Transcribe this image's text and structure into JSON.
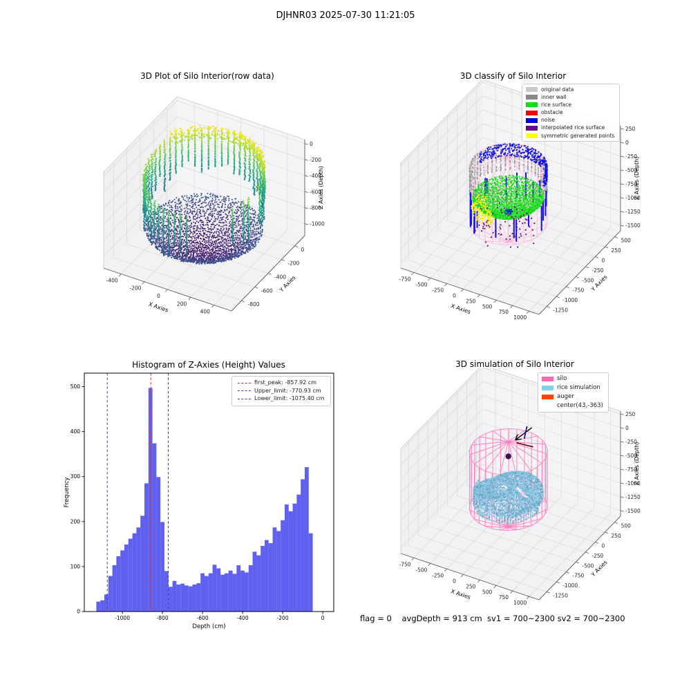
{
  "window_title": "DJHNR03 2025-07-30 11:21:05",
  "footer": "flag = 0    avgDepth = 913 cm  sv1 = 700~2300 sv2 = 700~2300",
  "chart_data": [
    {
      "id": "raw_scatter",
      "type": "scatter",
      "title": "3D Plot of Silo Interior(row data)",
      "xlabel": "X Axies",
      "ylabel": "Y Axies",
      "zlabel": "Z Axies (Depth)",
      "xticks": [
        -400,
        -200,
        0,
        200,
        400
      ],
      "yticks": [
        0,
        -200,
        -400,
        -600,
        -800
      ],
      "zticks": [
        0,
        -200,
        -400,
        -600,
        -800,
        -1000
      ],
      "xlim": [
        -550,
        550
      ],
      "ylim": [
        -950,
        150
      ],
      "zlim": [
        -1150,
        50
      ],
      "colormap": "viridis",
      "silo": {
        "center_x": 0,
        "center_y": -400,
        "radius": 450,
        "rim_top": -10,
        "wall_bottom": -700,
        "basin_edge": -860,
        "basin_center": -1080
      }
    },
    {
      "id": "classify",
      "type": "scatter",
      "title": "3D classify of Silo Interior",
      "xlabel": "X Axies",
      "ylabel": "Y Axies",
      "zlabel": "Z Axies (Depth)",
      "xticks": [
        -750,
        -500,
        -250,
        0,
        250,
        500,
        750,
        1000
      ],
      "yticks": [
        500,
        250,
        0,
        -250,
        -500,
        -750,
        -1000,
        -1250
      ],
      "zticks": [
        250,
        0,
        -250,
        -500,
        -750,
        -1000,
        -1250,
        -1500
      ],
      "xlim": [
        -950,
        1150
      ],
      "ylim": [
        -1450,
        650
      ],
      "zlim": [
        -1600,
        300
      ],
      "legend": [
        {
          "label": "original data",
          "color": "#c9c9c9"
        },
        {
          "label": "inner wall",
          "color": "#8a8a8a"
        },
        {
          "label": "rice surface",
          "color": "#00e400"
        },
        {
          "label": "obstacle",
          "color": "#ff0000"
        },
        {
          "label": "noise",
          "color": "#0000ee"
        },
        {
          "label": "interpolated rice surface",
          "color": "#6a0d83"
        },
        {
          "label": "symmetric generated points",
          "color": "#ffff00"
        }
      ],
      "silo": {
        "center_x": 43,
        "center_y": -363,
        "radius": 510,
        "cyl_top": -150,
        "cyl_bottom": -1150,
        "roof_apex": 40,
        "hopper_apex": -1520
      }
    },
    {
      "id": "histogram",
      "type": "bar",
      "title": "Histogram of Z-Axies (Height) Values",
      "xlabel": "Depth (cm)",
      "ylabel": "Frequency",
      "xticks": [
        -1000,
        -800,
        -600,
        -400,
        -200,
        0
      ],
      "yticks": [
        0,
        100,
        200,
        300,
        400,
        500
      ],
      "xlim": [
        -1190,
        55
      ],
      "ylim": [
        0,
        530
      ],
      "bin_start": -1130,
      "bin_width": 20,
      "values": [
        22,
        25,
        38,
        79,
        103,
        123,
        136,
        149,
        162,
        174,
        187,
        213,
        285,
        497,
        374,
        299,
        199,
        90,
        55,
        68,
        60,
        62,
        58,
        56,
        60,
        63,
        85,
        79,
        85,
        104,
        96,
        82,
        85,
        91,
        84,
        103,
        91,
        87,
        103,
        133,
        125,
        146,
        159,
        152,
        187,
        179,
        203,
        238,
        223,
        240,
        260,
        294,
        321,
        174
      ],
      "bar_color": "#4444ee",
      "markers": [
        {
          "label": "first_peak: -857.92 cm",
          "x": -857.92,
          "color": "#e03030"
        },
        {
          "label": "Upper_limit: -770.93 cm",
          "x": -770.93,
          "color": "#3434d8"
        },
        {
          "label": "Lower_limit: -1075.40 cm",
          "x": -1075.4,
          "color": "#3434d8"
        }
      ]
    },
    {
      "id": "simulation",
      "type": "scatter",
      "title": "3D simulation of Silo Interior",
      "xlabel": "X Axies",
      "ylabel": "Y Axies",
      "zlabel": "Z Axies (Depth)",
      "xticks": [
        -750,
        -500,
        -250,
        0,
        250,
        500,
        750,
        1000
      ],
      "yticks": [
        500,
        250,
        0,
        -250,
        -500,
        -750,
        -1000,
        -1250
      ],
      "zticks": [
        250,
        0,
        -250,
        -500,
        -750,
        -1000,
        -1250,
        -1500
      ],
      "xlim": [
        -950,
        1150
      ],
      "ylim": [
        -1450,
        650
      ],
      "zlim": [
        -1600,
        300
      ],
      "legend": [
        {
          "label": "silo",
          "color": "#ff69b4"
        },
        {
          "label": "rice simulation",
          "color": "#87ceeb"
        },
        {
          "label": "auger",
          "color": "#ff4500"
        },
        {
          "label": "center(43,-363)",
          "color": null
        }
      ],
      "silo": {
        "center_x": 43,
        "center_y": -363,
        "radius": 510,
        "cyl_top": -150,
        "cyl_bottom": -1150,
        "roof_apex": 40,
        "hopper_apex": -1520
      },
      "auger": {
        "x": 43,
        "y": -363,
        "z": -230
      },
      "rice_surface_color": "#8ec9e6"
    }
  ]
}
